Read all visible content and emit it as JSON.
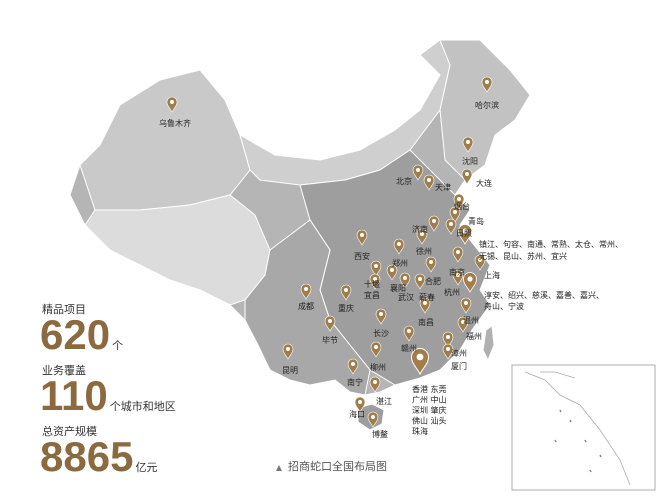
{
  "cities": [
    "乌鲁木齐",
    "哈尔滨",
    "沈阳",
    "北京",
    "天津",
    "大连",
    "烟台",
    "青岛",
    "日照",
    "济南",
    "西安",
    "郑州",
    "徐州",
    "合肥",
    "南京",
    "上海",
    "杭州",
    "十堰",
    "襄阳",
    "宜昌",
    "武汉",
    "蕲春",
    "成都",
    "重庆",
    "长沙",
    "南昌",
    "温州",
    "福州",
    "赣州",
    "毕节",
    "柳州",
    "漳州",
    "厦门",
    "昆明",
    "南宁",
    "湛江",
    "海口",
    "博鳌"
  ],
  "groups": [
    [
      "镇江、句容、南通、常熟、太仓、常州、",
      "无锡、昆山、苏州、宜兴"
    ],
    [
      "淳安、绍兴、慈溪、嘉善、嘉兴、",
      "舟山、宁波"
    ],
    [
      "香港 东莞",
      "广州 中山",
      "深圳 肇庆",
      "佛山 汕头",
      "珠海"
    ]
  ],
  "stats": [
    {
      "label": "精品项目",
      "value": 620,
      "unit": "个"
    },
    {
      "label": "业务覆盖",
      "value": 110,
      "unit": "个城市和地区"
    },
    {
      "label": "总资产规模",
      "value": 8865,
      "unit": "亿元"
    }
  ],
  "caption": "招商蛇口全国布局图"
}
